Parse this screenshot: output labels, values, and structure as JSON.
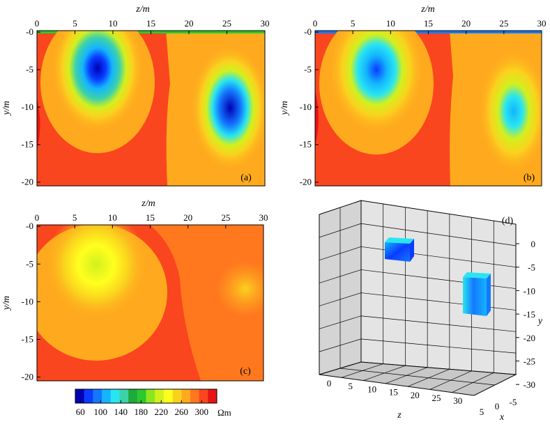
{
  "chart_data": [
    {
      "type": "heatmap",
      "panel_label": "(a)",
      "xlabel": "z/m",
      "ylabel": "y/m",
      "xlim": [
        0,
        30
      ],
      "ylim": [
        -20.5,
        0.2
      ],
      "xticks": [
        0,
        5,
        10,
        15,
        20,
        25,
        30
      ],
      "yticks": [
        0,
        -5,
        -10,
        -15,
        -20
      ],
      "xtick_labels": [
        "0",
        "5",
        "10",
        "15",
        "20",
        "25",
        "30"
      ],
      "ytick_labels": [
        "-0",
        "-5",
        "-10",
        "-15",
        "-20"
      ],
      "anomalies": [
        {
          "center": [
            7.5,
            -4.0
          ],
          "min_resistivity": 60
        },
        {
          "center": [
            26.0,
            -9.5
          ],
          "min_resistivity": 60
        }
      ]
    },
    {
      "type": "heatmap",
      "panel_label": "(b)",
      "xlabel": "z/m",
      "ylabel": "y/m",
      "xlim": [
        0,
        30
      ],
      "ylim": [
        -20.5,
        0.2
      ],
      "xticks": [
        0,
        5,
        10,
        15,
        20,
        25,
        30
      ],
      "yticks": [
        0,
        -5,
        -10,
        -15,
        -20
      ],
      "xtick_labels": [
        "0",
        "5",
        "10",
        "15",
        "20",
        "25",
        "30"
      ],
      "ytick_labels": [
        "-0",
        "-5",
        "-10",
        "-15",
        "-20"
      ],
      "anomalies": [
        {
          "center": [
            7.8,
            -4.0
          ],
          "min_resistivity": 70
        },
        {
          "center": [
            26.5,
            -9.0
          ],
          "min_resistivity": 110
        }
      ]
    },
    {
      "type": "heatmap",
      "panel_label": "(c)",
      "xlabel": "z/m",
      "ylabel": "y/m",
      "xlim": [
        0,
        30
      ],
      "ylim": [
        -20.5,
        0.2
      ],
      "xticks": [
        0,
        5,
        10,
        15,
        20,
        25,
        30
      ],
      "yticks": [
        0,
        -5,
        -10,
        -15,
        -20
      ],
      "xtick_labels": [
        "0",
        "5",
        "10",
        "15",
        "20",
        "25",
        "30"
      ],
      "ytick_labels": [
        "-0",
        "-5",
        "-10",
        "-15",
        "-20"
      ],
      "anomalies": [
        {
          "center": [
            7.5,
            -5.0
          ],
          "min_resistivity": 200
        },
        {
          "center": [
            28.0,
            -8.5
          ],
          "min_resistivity": 270
        }
      ]
    },
    {
      "type": "3d-model",
      "panel_label": "(d)",
      "xlabel": "x",
      "ylabel": "y",
      "zlabel": "z",
      "z_ticks": [
        "0",
        "5",
        "10",
        "15",
        "20",
        "25",
        "30"
      ],
      "y_ticks": [
        "0",
        "-5",
        "-10",
        "-15",
        "-20",
        "-25",
        "-30"
      ],
      "x_ticks": [
        "-5",
        "0",
        "5"
      ],
      "bodies": [
        {
          "z_range": [
            5,
            10
          ],
          "y_range": [
            -2,
            -5
          ],
          "resistivity": 60
        },
        {
          "z_range": [
            25,
            28
          ],
          "y_range": [
            -7,
            -13
          ],
          "resistivity": 90
        }
      ]
    }
  ],
  "colorbar": {
    "ticks": [
      "60",
      "100",
      "140",
      "180",
      "220",
      "260",
      "300"
    ],
    "unit": "Ωm",
    "min": 50,
    "max": 330,
    "colors": [
      "#0000b4",
      "#0a3cff",
      "#1478ff",
      "#14b4ff",
      "#28e6f0",
      "#3cd2aa",
      "#1eaa3c",
      "#2cc82c",
      "#8ce61e",
      "#d2f01e",
      "#ffff1e",
      "#fad21e",
      "#ffaa1e",
      "#ff781e",
      "#fa461e",
      "#e61414"
    ]
  }
}
